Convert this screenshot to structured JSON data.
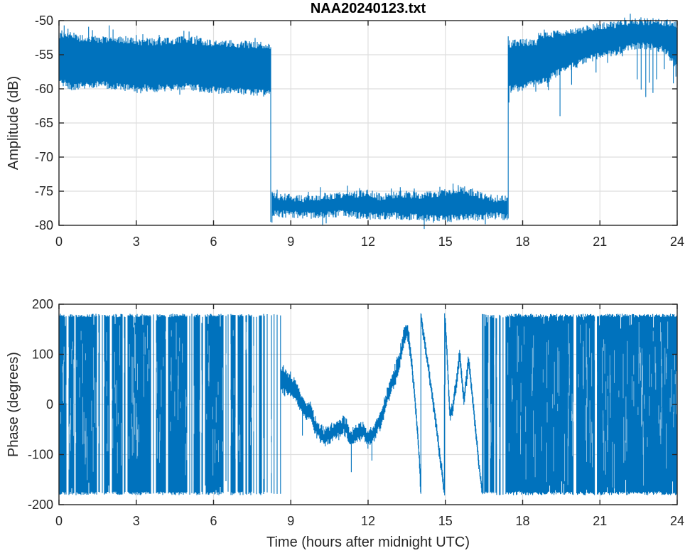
{
  "figure": {
    "background": "#ffffff",
    "line_color": "#0072BD",
    "axis_color": "#262626",
    "grid_color": "#dedede",
    "title_color": "#000000"
  },
  "chart_data": [
    {
      "type": "line",
      "title": "NAA20240123.txt",
      "xlabel": "",
      "ylabel": "Amplitude (dB)",
      "xlim": [
        0,
        24
      ],
      "ylim": [
        -80,
        -50
      ],
      "xticks": [
        0,
        3,
        6,
        9,
        12,
        15,
        18,
        21,
        24
      ],
      "yticks": [
        -80,
        -75,
        -70,
        -65,
        -60,
        -55,
        -50
      ],
      "grid": true,
      "description": "VLF amplitude vs time: signal on ~-56 dB from 0-8.2h, transmitter off ~-77 dB from 8.2-17.43h, on again rising from -57 to -52 dB from 17.45-24h",
      "segments": [
        {
          "name": "on_morning",
          "t": [
            0,
            8.21
          ],
          "upper": [
            [
              0,
              -52.4
            ],
            [
              0.3,
              -52.2
            ],
            [
              1,
              -52.9
            ],
            [
              2,
              -52.9
            ],
            [
              3,
              -53.2
            ],
            [
              4,
              -53.3
            ],
            [
              4.9,
              -52.9
            ],
            [
              6,
              -53.5
            ],
            [
              7,
              -53.6
            ],
            [
              8.21,
              -53.9
            ]
          ],
          "lower": [
            [
              0,
              -58.6
            ],
            [
              0.5,
              -59.6
            ],
            [
              1.5,
              -59.1
            ],
            [
              2.5,
              -59.6
            ],
            [
              4,
              -59.8
            ],
            [
              5,
              -59.5
            ],
            [
              6,
              -60.0
            ],
            [
              7,
              -60.1
            ],
            [
              8.21,
              -60.6
            ]
          ],
          "spikes": [
            [
              0.2,
              -50.7
            ],
            [
              0.35,
              -51.2
            ],
            [
              1.15,
              -50.9
            ],
            [
              1.3,
              -51.4
            ],
            [
              1.95,
              -50.7
            ],
            [
              2.1,
              -51.3
            ],
            [
              3.0,
              -52.1
            ],
            [
              4.85,
              -51.5
            ],
            [
              5.05,
              -51.6
            ]
          ]
        },
        {
          "name": "off_day",
          "t": [
            8.25,
            17.43
          ],
          "upper": [
            [
              8.25,
              -75.2
            ],
            [
              8.4,
              -75.9
            ],
            [
              9,
              -76.1
            ],
            [
              9.5,
              -76.3
            ],
            [
              10,
              -76.0
            ],
            [
              10.7,
              -75.8
            ],
            [
              11.5,
              -75.6
            ],
            [
              12,
              -75.4
            ],
            [
              12.5,
              -76.1
            ],
            [
              13.2,
              -75.5
            ],
            [
              14,
              -75.9
            ],
            [
              15,
              -75.3
            ],
            [
              15.6,
              -74.9
            ],
            [
              16.2,
              -75.6
            ],
            [
              16.8,
              -76.2
            ],
            [
              17.43,
              -76.2
            ]
          ],
          "lower": [
            [
              8.25,
              -78.1
            ],
            [
              9,
              -78.2
            ],
            [
              10,
              -78.4
            ],
            [
              11,
              -78.1
            ],
            [
              12,
              -78.5
            ],
            [
              13,
              -78.4
            ],
            [
              14,
              -78.7
            ],
            [
              15,
              -78.9
            ],
            [
              16,
              -78.6
            ],
            [
              17,
              -78.4
            ],
            [
              17.43,
              -78.6
            ]
          ],
          "spikes": [
            [
              8.27,
              -79.6
            ],
            [
              11.2,
              -74.2
            ],
            [
              12.9,
              -74.6
            ],
            [
              13.25,
              -74.4
            ],
            [
              15.3,
              -73.9
            ],
            [
              15.5,
              -74.1
            ],
            [
              15.75,
              -74.3
            ],
            [
              16.05,
              -74.6
            ],
            [
              17.4,
              -79.2
            ]
          ]
        },
        {
          "name": "on_evening",
          "t": [
            17.45,
            24
          ],
          "upper": [
            [
              17.45,
              -53.6
            ],
            [
              18,
              -53.4
            ],
            [
              18.55,
              -53.3
            ],
            [
              18.62,
              -52.3
            ],
            [
              19,
              -52.3
            ],
            [
              19.5,
              -52.0
            ],
            [
              20,
              -51.8
            ],
            [
              20.5,
              -51.3
            ],
            [
              21,
              -51.0
            ],
            [
              21.5,
              -50.8
            ],
            [
              22,
              -50.5
            ],
            [
              22.3,
              -50.3
            ],
            [
              23,
              -50.3
            ],
            [
              23.5,
              -50.4
            ],
            [
              24,
              -50.9
            ]
          ],
          "lower": [
            [
              17.45,
              -59.9
            ],
            [
              18,
              -59.6
            ],
            [
              18.6,
              -58.9
            ],
            [
              19,
              -58.4
            ],
            [
              19.5,
              -57.1
            ],
            [
              20,
              -56.4
            ],
            [
              20.5,
              -55.6
            ],
            [
              21,
              -55.0
            ],
            [
              21.5,
              -54.5
            ],
            [
              22,
              -53.9
            ],
            [
              22.5,
              -53.5
            ],
            [
              23,
              -53.7
            ],
            [
              23.5,
              -54.1
            ],
            [
              24,
              -56.6
            ]
          ],
          "spikes": [
            [
              17.47,
              -62.0
            ],
            [
              18.72,
              -58.1
            ],
            [
              19.0,
              -60.2
            ],
            [
              19.45,
              -64.0
            ],
            [
              19.9,
              -59.4
            ],
            [
              20.85,
              -57.6
            ],
            [
              21.3,
              -56.2
            ],
            [
              22.45,
              -58.6
            ],
            [
              22.6,
              -60.1
            ],
            [
              22.78,
              -61.2
            ],
            [
              22.92,
              -59.1
            ],
            [
              23.06,
              -60.6
            ],
            [
              23.2,
              -58.6
            ],
            [
              23.5,
              -57.1
            ],
            [
              23.85,
              -59.2
            ],
            [
              23.95,
              -58.2
            ]
          ]
        }
      ],
      "transitions": [
        {
          "t": 8.22,
          "from": -53.9,
          "to": -79.5
        },
        {
          "t": 17.44,
          "from": -79.0,
          "to": -52.3
        }
      ]
    },
    {
      "type": "line",
      "title": "",
      "xlabel": "Time (hours after midnight UTC)",
      "ylabel": "Phase (degrees)",
      "xlim": [
        0,
        24
      ],
      "ylim": [
        -200,
        200
      ],
      "xticks": [
        0,
        3,
        6,
        9,
        12,
        15,
        18,
        21,
        24
      ],
      "yticks": [
        -200,
        -100,
        0,
        100,
        200
      ],
      "grid": true,
      "description": "Phase vs time: wrapped full-range noise +/-180 deg while transmitter off-lock (0-8.25h and 16.45-24h), coherent phase track 8.6-16.42h with wraps near 14.05h and 14.97h",
      "noise_regions": [
        {
          "t": [
            0,
            8.25
          ],
          "top": 181,
          "bottom": -181,
          "gaps": [
            0.33,
            0.62,
            1.5,
            1.62,
            1.72,
            2.02,
            2.5,
            2.62,
            3.62,
            3.72,
            4.2,
            5.02,
            5.12,
            5.2,
            5.5,
            5.62,
            6.42,
            6.52,
            6.62,
            6.9,
            7.2,
            7.32,
            7.52,
            7.62,
            7.72,
            7.9,
            8.02,
            8.12,
            8.2
          ]
        },
        {
          "t": [
            16.55,
            17.45
          ],
          "top": 179,
          "bottom": -181,
          "gaps": [
            16.7,
            16.92,
            17.05,
            17.18,
            17.3
          ]
        },
        {
          "t": [
            17.45,
            24
          ],
          "top": 181,
          "bottom": -181,
          "gaps": [
            20.0,
            20.06,
            20.85
          ]
        }
      ],
      "wrap_lines": [
        8.35,
        8.47,
        8.6,
        14.05,
        14.97,
        16.44,
        16.47,
        16.52
      ],
      "track": {
        "t": [
          8.6,
          16.42
        ],
        "center": [
          [
            8.6,
            50
          ],
          [
            8.8,
            44
          ],
          [
            9.0,
            38
          ],
          [
            9.2,
            25
          ],
          [
            9.4,
            2
          ],
          [
            9.6,
            -15
          ],
          [
            9.75,
            -10
          ],
          [
            9.9,
            -38
          ],
          [
            10.1,
            -55
          ],
          [
            10.3,
            -66
          ],
          [
            10.5,
            -60
          ],
          [
            10.7,
            -54
          ],
          [
            10.9,
            -48
          ],
          [
            11.05,
            -40
          ],
          [
            11.2,
            -52
          ],
          [
            11.3,
            -70
          ],
          [
            11.45,
            -62
          ],
          [
            11.6,
            -55
          ],
          [
            11.8,
            -52
          ],
          [
            12.0,
            -68
          ],
          [
            12.2,
            -58
          ],
          [
            12.35,
            -45
          ],
          [
            12.5,
            -28
          ],
          [
            12.65,
            -2
          ],
          [
            12.8,
            25
          ],
          [
            12.95,
            45
          ],
          [
            13.1,
            66
          ],
          [
            13.25,
            95
          ],
          [
            13.4,
            135
          ],
          [
            13.5,
            146
          ],
          [
            13.58,
            128
          ],
          [
            13.7,
            78
          ],
          [
            13.8,
            22
          ],
          [
            13.9,
            -45
          ],
          [
            14.0,
            -115
          ],
          [
            14.04,
            -175
          ],
          [
            14.06,
            175
          ],
          [
            14.2,
            122
          ],
          [
            14.35,
            70
          ],
          [
            14.5,
            15
          ],
          [
            14.65,
            -45
          ],
          [
            14.8,
            -110
          ],
          [
            14.9,
            -148
          ],
          [
            14.96,
            -176
          ],
          [
            14.98,
            176
          ],
          [
            15.05,
            120
          ],
          [
            15.12,
            35
          ],
          [
            15.18,
            -20
          ],
          [
            15.28,
            -12
          ],
          [
            15.38,
            32
          ],
          [
            15.48,
            62
          ],
          [
            15.56,
            100
          ],
          [
            15.64,
            52
          ],
          [
            15.72,
            8
          ],
          [
            15.82,
            52
          ],
          [
            15.9,
            92
          ],
          [
            16.0,
            42
          ],
          [
            16.1,
            -12
          ],
          [
            16.2,
            -62
          ],
          [
            16.3,
            -122
          ],
          [
            16.42,
            -172
          ]
        ],
        "sigma": [
          [
            8.6,
            26
          ],
          [
            9.0,
            20
          ],
          [
            9.5,
            16
          ],
          [
            10,
            14
          ],
          [
            11,
            15
          ],
          [
            12,
            14
          ],
          [
            12.8,
            16
          ],
          [
            13.4,
            18
          ],
          [
            13.9,
            10
          ],
          [
            14.5,
            12
          ],
          [
            15.0,
            10
          ],
          [
            15.5,
            14
          ],
          [
            16.0,
            12
          ],
          [
            16.42,
            8
          ]
        ],
        "dips": [
          [
            9.45,
            -62
          ],
          [
            11.35,
            -135
          ],
          [
            12.15,
            -112
          ]
        ]
      }
    }
  ]
}
